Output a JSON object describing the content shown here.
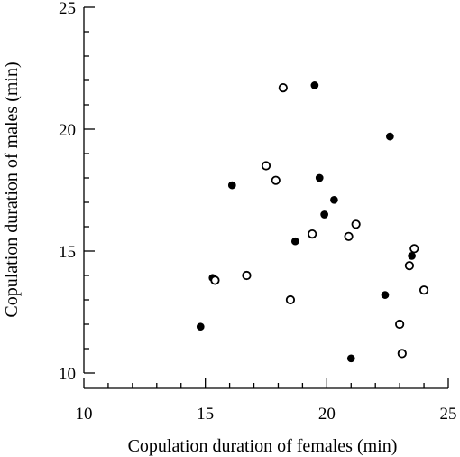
{
  "chart_data": {
    "type": "scatter",
    "xlabel": "Copulation duration of females (min)",
    "ylabel": "Copulation duration of males (min)",
    "xlim": [
      10,
      25
    ],
    "ylim": [
      10,
      25
    ],
    "xticks": [
      10,
      15,
      20,
      25
    ],
    "yticks": [
      10,
      15,
      20,
      25
    ],
    "grid": false,
    "series": [
      {
        "marker": "filled-circle",
        "color": "#000000",
        "points": [
          {
            "x": 14.8,
            "y": 11.9
          },
          {
            "x": 15.3,
            "y": 13.9
          },
          {
            "x": 16.1,
            "y": 17.7
          },
          {
            "x": 18.7,
            "y": 15.4
          },
          {
            "x": 19.5,
            "y": 21.8
          },
          {
            "x": 19.7,
            "y": 18.0
          },
          {
            "x": 19.9,
            "y": 16.5
          },
          {
            "x": 20.3,
            "y": 17.1
          },
          {
            "x": 21.0,
            "y": 10.6
          },
          {
            "x": 22.4,
            "y": 13.2
          },
          {
            "x": 22.6,
            "y": 19.7
          },
          {
            "x": 23.5,
            "y": 14.8
          }
        ]
      },
      {
        "marker": "open-circle",
        "color": "#000000",
        "points": [
          {
            "x": 15.4,
            "y": 13.8
          },
          {
            "x": 16.7,
            "y": 14.0
          },
          {
            "x": 17.5,
            "y": 18.5
          },
          {
            "x": 17.9,
            "y": 17.9
          },
          {
            "x": 18.2,
            "y": 21.7
          },
          {
            "x": 18.5,
            "y": 13.0
          },
          {
            "x": 19.4,
            "y": 15.7
          },
          {
            "x": 20.9,
            "y": 15.6
          },
          {
            "x": 21.2,
            "y": 16.1
          },
          {
            "x": 23.0,
            "y": 12.0
          },
          {
            "x": 23.1,
            "y": 10.8
          },
          {
            "x": 23.4,
            "y": 14.4
          },
          {
            "x": 23.6,
            "y": 15.1
          },
          {
            "x": 24.0,
            "y": 13.4
          }
        ]
      }
    ]
  }
}
